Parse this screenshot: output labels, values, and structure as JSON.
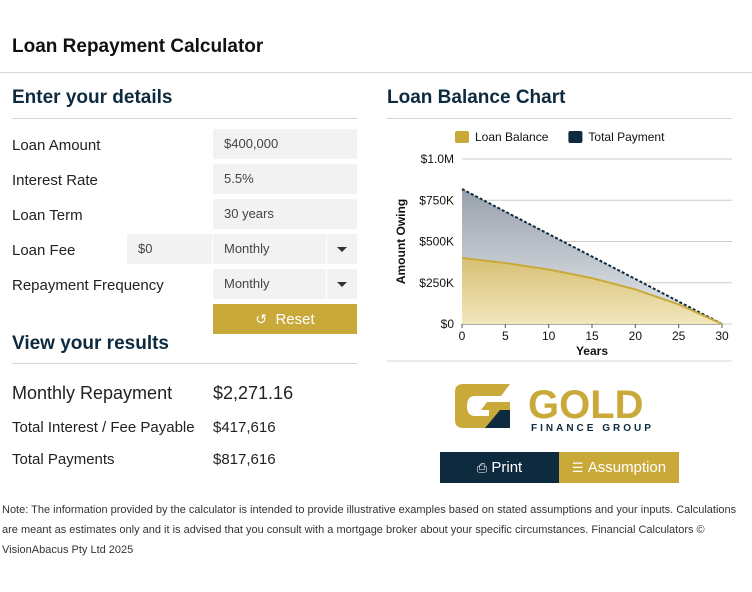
{
  "header": {
    "title": "Loan Repayment Calculator"
  },
  "details": {
    "heading": "Enter your details",
    "fields": [
      {
        "label": "Loan Amount",
        "value": "$400,000"
      },
      {
        "label": "Interest Rate",
        "value": "5.5%"
      },
      {
        "label": "Loan Term",
        "value": "30 years"
      },
      {
        "label": "Loan Fee",
        "value": "$0",
        "frequency": "Monthly"
      },
      {
        "label": "Repayment Frequency",
        "value": "Monthly"
      }
    ],
    "reset": "Reset"
  },
  "results": {
    "heading": "View your results",
    "rows": [
      {
        "label": "Monthly Repayment",
        "value": "$2,271.16"
      },
      {
        "label": "Total Interest / Fee Payable",
        "value": "$417,616"
      },
      {
        "label": "Total Payments",
        "value": "$817,616"
      }
    ]
  },
  "chart_panel": {
    "heading": "Loan Balance Chart"
  },
  "chart_data": {
    "type": "area",
    "x_label": "Years",
    "y_label": "Amount Owing",
    "x": [
      0,
      5,
      10,
      15,
      20,
      25,
      30
    ],
    "series": [
      {
        "name": "Loan Balance",
        "color": "#c9a93a",
        "values": [
          400000,
          369800,
          330200,
          278000,
          209300,
          118800,
          0
        ]
      },
      {
        "name": "Total Payment",
        "color": "#0d2a3f",
        "values": [
          818000,
          681000,
          545000,
          409000,
          273000,
          136000,
          0
        ]
      }
    ],
    "xlim": [
      0,
      30
    ],
    "xticks": [
      0,
      5,
      10,
      15,
      20,
      25,
      30
    ],
    "ylim": [
      0,
      1000000
    ],
    "yticks": [
      {
        "value": 0,
        "label": "$0"
      },
      {
        "value": 250000,
        "label": "$250K"
      },
      {
        "value": 500000,
        "label": "$500K"
      },
      {
        "value": 750000,
        "label": "$750K"
      },
      {
        "value": 1000000,
        "label": "$1.0M"
      }
    ],
    "grid": true,
    "legend": "top"
  },
  "logo": {
    "name": "GOLD",
    "tagline": "FINANCE GROUP"
  },
  "buttons": {
    "print": "Print",
    "assumption": "Assumption"
  },
  "note": "Note: The information provided by the calculator is intended to provide illustrative examples based on stated assumptions and your inputs. Calculations are meant as estimates only and it is advised that you consult with a mortgage broker about your specific circumstances. Financial Calculators © VisionAbacus Pty Ltd 2025"
}
